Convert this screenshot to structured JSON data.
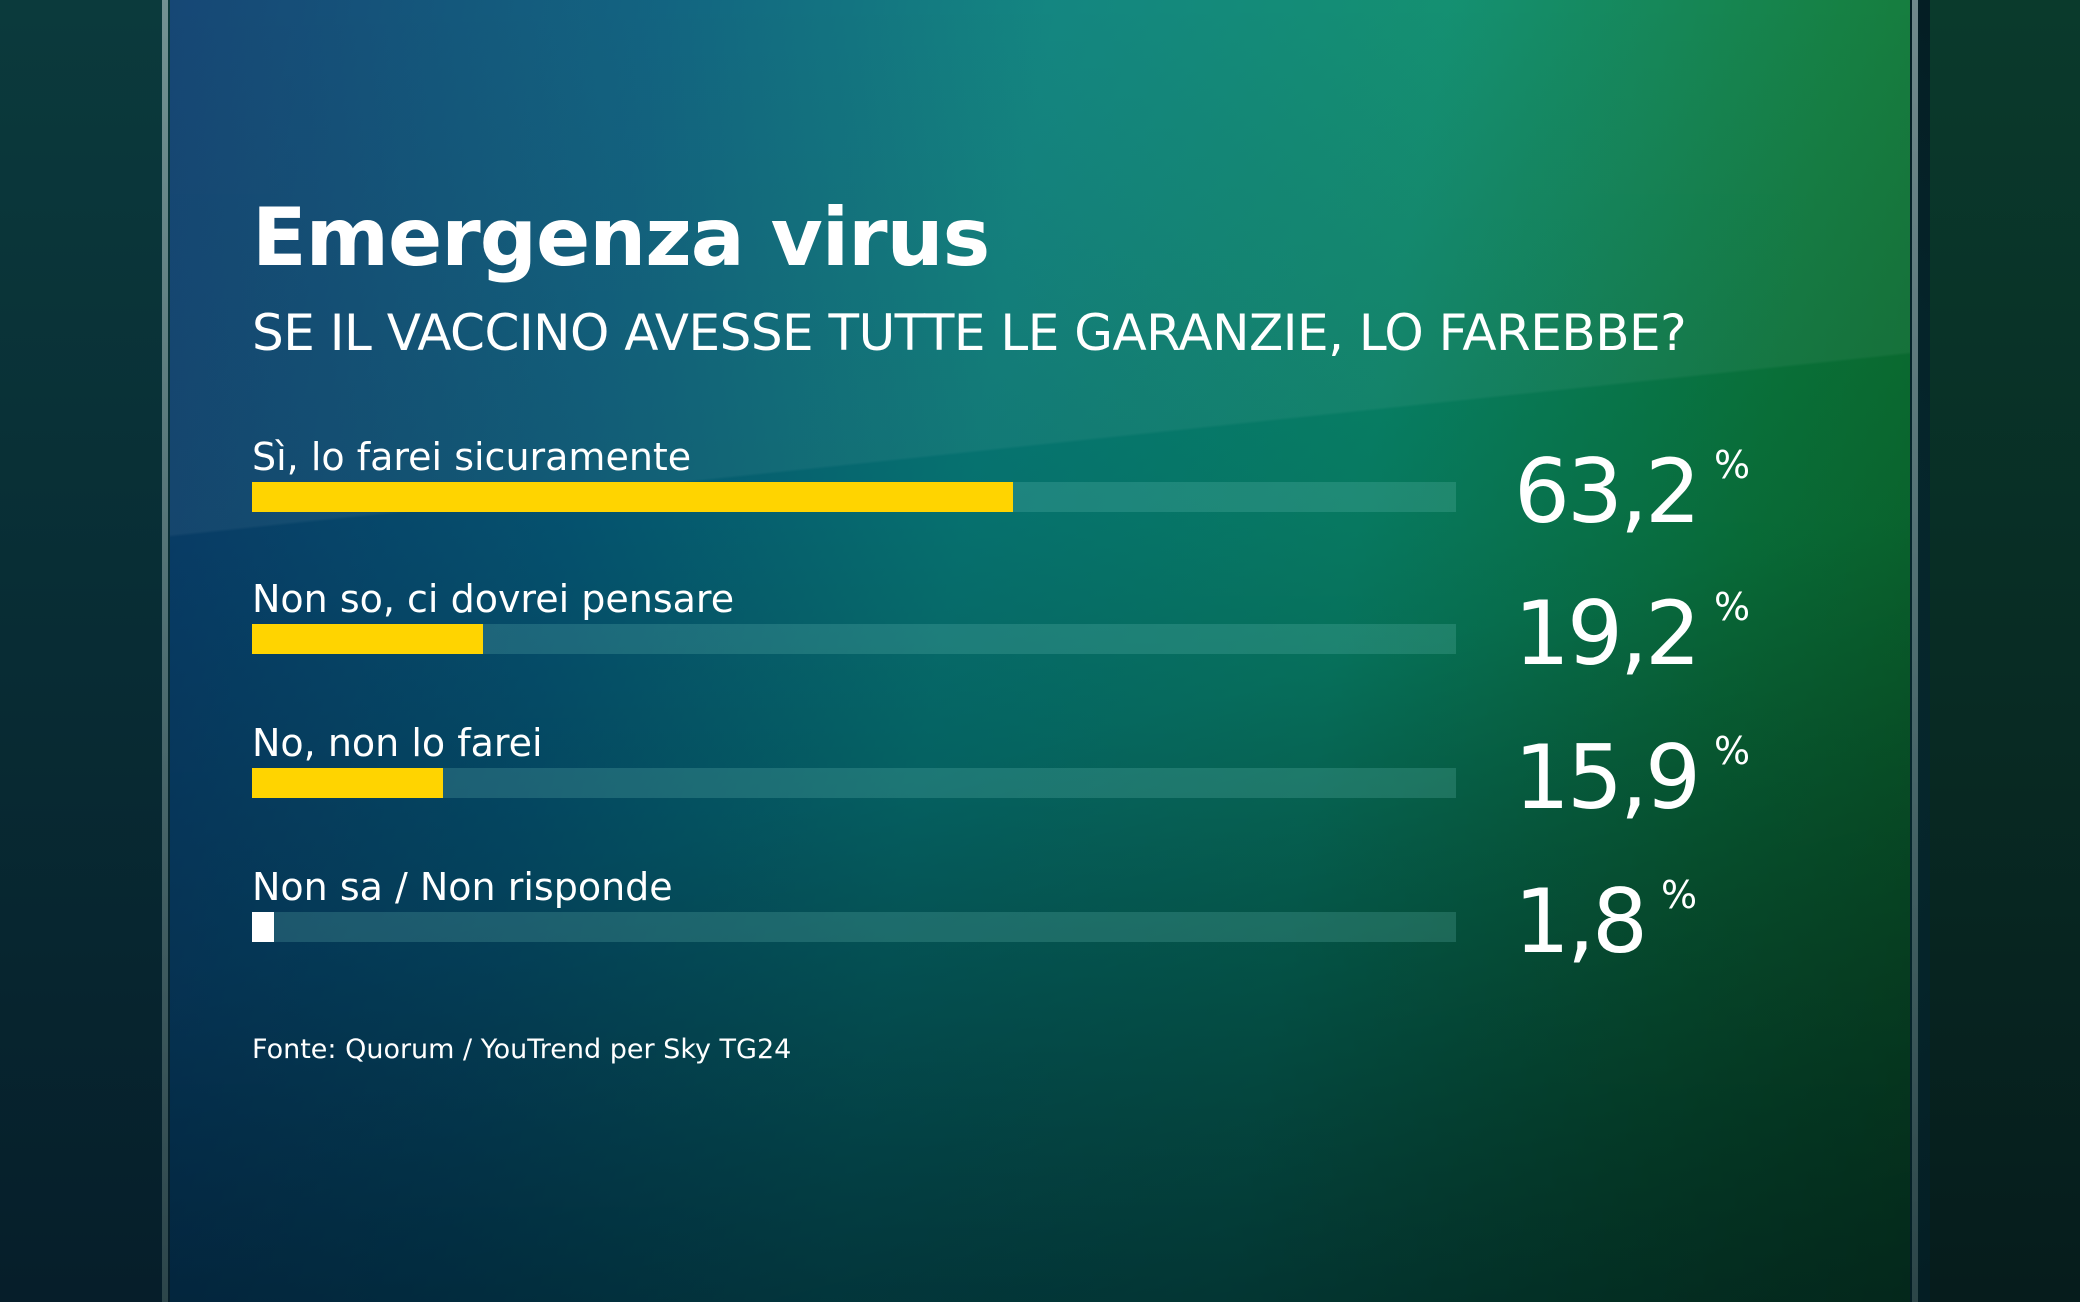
{
  "title": "Emergenza virus",
  "subtitle": "SE IL VACCINO AVESSE TUTTE LE GARANZIE, LO FAREBBE?",
  "source": "Fonte: Quorum / YouTrend per Sky TG24",
  "unit": "%",
  "colors": {
    "bar_primary": "#ffd400",
    "bar_minor": "#ffffff",
    "track": "#4fa59c"
  },
  "chart_data": {
    "type": "bar",
    "orientation": "horizontal",
    "title": "Emergenza virus",
    "subtitle": "SE IL VACCINO AVESSE TUTTE LE GARANZIE, LO FAREBBE?",
    "categories": [
      "Sì, lo farei sicuramente",
      "Non so, ci dovrei pensare",
      "No, non lo farei",
      "Non sa / Non risponde"
    ],
    "values": [
      63.2,
      19.2,
      15.9,
      1.8
    ],
    "value_labels": [
      "63,2",
      "19,2",
      "15,9",
      "1,8"
    ],
    "xlim": [
      0,
      100
    ],
    "grid": false,
    "legend": "none"
  }
}
